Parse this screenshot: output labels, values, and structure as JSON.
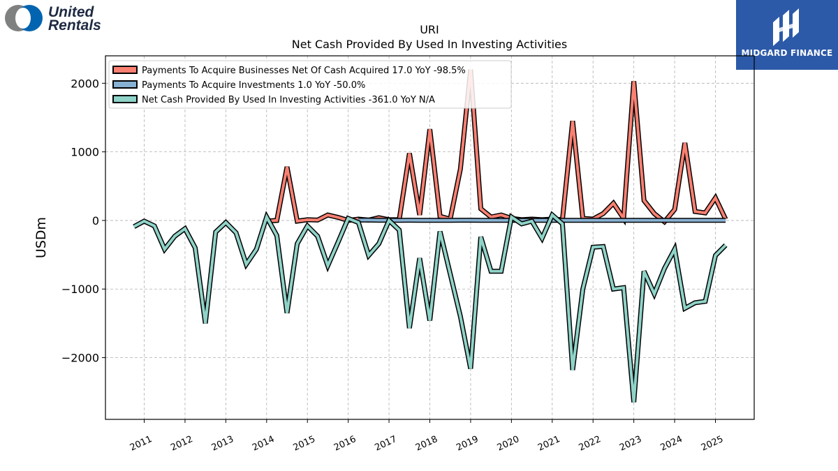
{
  "header": {
    "company_logo": {
      "line1": "United",
      "line2": "Rentals",
      "colors": [
        "#7f8080",
        "#0064b0"
      ]
    },
    "partner_badge": {
      "text": "MIDGARD FINANCE",
      "background": "#2c5aa8"
    }
  },
  "chart_data": {
    "type": "line",
    "title": "URI",
    "subtitle": "Net Cash Provided By Used In Investing Activities",
    "ylabel": "USDm",
    "xlabel": "",
    "ylim": [
      -2900,
      2400
    ],
    "xlim": [
      2010.05,
      2025.95
    ],
    "yticks": [
      2000,
      1000,
      0,
      -1000,
      -2000
    ],
    "ytick_labels": [
      "2000",
      "1000",
      "0",
      "−1000",
      "−2000"
    ],
    "xticks": [
      2011,
      2012,
      2013,
      2014,
      2015,
      2016,
      2017,
      2018,
      2019,
      2020,
      2021,
      2022,
      2023,
      2024,
      2025
    ],
    "xtick_labels": [
      "2011",
      "2012",
      "2013",
      "2014",
      "2015",
      "2016",
      "2017",
      "2018",
      "2019",
      "2020",
      "2021",
      "2022",
      "2023",
      "2024",
      "2025"
    ],
    "grid": true,
    "legend_position": "top-left",
    "series": [
      {
        "name": "Payments To Acquire Businesses Net Of Cash Acquired  17.0 YoY -98.5%",
        "color": "#fa8072",
        "x": [
          2014.0,
          2014.25,
          2014.5,
          2014.75,
          2015.0,
          2015.25,
          2015.5,
          2015.75,
          2016.0,
          2016.25,
          2016.5,
          2016.75,
          2017.0,
          2017.25,
          2017.5,
          2017.75,
          2018.0,
          2018.25,
          2018.5,
          2018.75,
          2019.0,
          2019.25,
          2019.5,
          2019.75,
          2020.0,
          2020.25,
          2020.5,
          2020.75,
          2021.0,
          2021.25,
          2021.5,
          2021.75,
          2022.0,
          2022.25,
          2022.5,
          2022.75,
          2023.0,
          2023.25,
          2023.5,
          2023.75,
          2024.0,
          2024.25,
          2024.5,
          2024.75,
          2025.0,
          2025.25
        ],
        "values": [
          -10,
          0,
          780,
          -10,
          10,
          5,
          80,
          45,
          0,
          20,
          5,
          40,
          10,
          10,
          980,
          80,
          1330,
          60,
          20,
          750,
          2200,
          170,
          50,
          80,
          30,
          10,
          20,
          10,
          20,
          10,
          1450,
          30,
          20,
          100,
          250,
          30,
          2030,
          290,
          100,
          -20,
          160,
          1130,
          130,
          110,
          330,
          17
        ]
      },
      {
        "name": "Payments To Acquire Investments  1.0 YoY -50.0%",
        "color": "#87b1d3",
        "x": [
          2016.25,
          2016.5,
          2016.75,
          2017.0,
          2017.25,
          2017.5,
          2017.75,
          2018.0,
          2018.25,
          2018.5,
          2018.75,
          2019.0,
          2019.25,
          2019.5,
          2019.75,
          2020.0,
          2020.25,
          2020.5,
          2020.75,
          2021.0,
          2021.25,
          2021.5,
          2021.75,
          2022.0,
          2022.25,
          2022.5,
          2022.75,
          2023.0,
          2023.25,
          2023.5,
          2023.75,
          2024.0,
          2024.25,
          2024.5,
          2024.75,
          2025.0,
          2025.25
        ],
        "values": [
          5,
          5,
          3,
          3,
          2,
          3,
          2,
          2,
          2,
          2,
          3,
          3,
          2,
          2,
          2,
          2,
          2,
          2,
          2,
          2,
          2,
          2,
          2,
          2,
          2,
          2,
          2,
          2,
          2,
          2,
          2,
          2,
          2,
          2,
          2,
          2,
          1
        ]
      },
      {
        "name": "Net Cash Provided By Used In Investing Activities  -361.0 YoY N/A",
        "color": "#8fd3c8",
        "x": [
          2010.75,
          2011.0,
          2011.25,
          2011.5,
          2011.75,
          2012.0,
          2012.25,
          2012.5,
          2012.75,
          2013.0,
          2013.25,
          2013.5,
          2013.75,
          2014.0,
          2014.25,
          2014.5,
          2014.75,
          2015.0,
          2015.25,
          2015.5,
          2015.75,
          2016.0,
          2016.25,
          2016.5,
          2016.75,
          2017.0,
          2017.25,
          2017.5,
          2017.75,
          2018.0,
          2018.25,
          2018.5,
          2018.75,
          2019.0,
          2019.25,
          2019.5,
          2019.75,
          2020.0,
          2020.25,
          2020.5,
          2020.75,
          2021.0,
          2021.25,
          2021.5,
          2021.75,
          2022.0,
          2022.25,
          2022.5,
          2022.75,
          2023.0,
          2023.25,
          2023.5,
          2023.75,
          2024.0,
          2024.25,
          2024.5,
          2024.75,
          2025.0,
          2025.25
        ],
        "values": [
          -90,
          -10,
          -80,
          -420,
          -230,
          -120,
          -400,
          -1500,
          -170,
          -30,
          -180,
          -640,
          -420,
          50,
          -220,
          -1350,
          -340,
          -80,
          -230,
          -660,
          -320,
          30,
          -30,
          -510,
          -340,
          0,
          -140,
          -1570,
          -550,
          -1460,
          -160,
          -780,
          -1400,
          -2160,
          -240,
          -740,
          -740,
          50,
          -50,
          -10,
          -260,
          80,
          -50,
          -2180,
          -1000,
          -390,
          -380,
          -1000,
          -980,
          -2650,
          -740,
          -1070,
          -700,
          -420,
          -1280,
          -1200,
          -1180,
          -510,
          -361
        ]
      }
    ]
  }
}
